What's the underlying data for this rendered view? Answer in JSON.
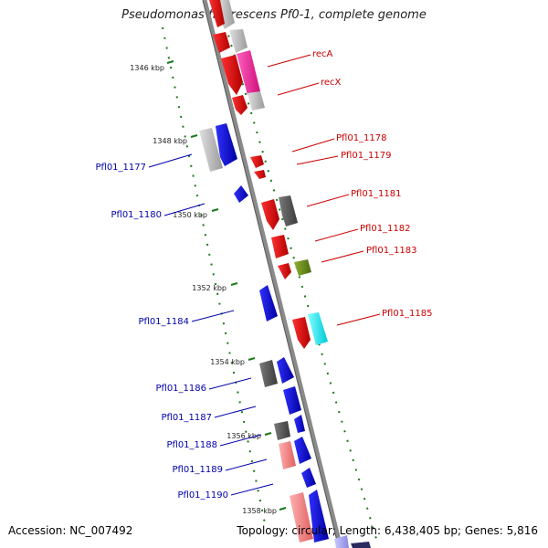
{
  "title": "Pseudomonas fluorescens Pf0-1, complete genome",
  "footer": {
    "accession": "Accession: NC_007492",
    "summary": "Topology: circular; Length: 6,438,405 bp; Genes: 5,816"
  },
  "colors": {
    "forward_label": "#cc0000",
    "reverse_label": "#0000aa",
    "tick": "#1a7a1a",
    "backbone": "#8a8a8a"
  },
  "ruler": [
    "1346 kbp",
    "1348 kbp",
    "1350 kbp",
    "1352 kbp",
    "1354 kbp",
    "1356 kbp",
    "1358 kbp"
  ],
  "genes_right": [
    "recA",
    "recX",
    "Pfl01_1178",
    "Pfl01_1179",
    "Pfl01_1181",
    "Pfl01_1182",
    "Pfl01_1183",
    "Pfl01_1185"
  ],
  "genes_left": [
    "Pfl01_1177",
    "Pfl01_1180",
    "Pfl01_1184",
    "Pfl01_1186",
    "Pfl01_1187",
    "Pfl01_1188",
    "Pfl01_1189",
    "Pfl01_1190"
  ]
}
